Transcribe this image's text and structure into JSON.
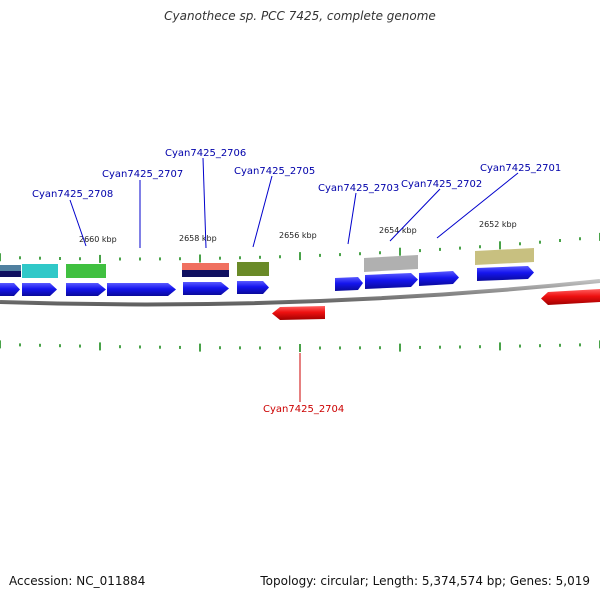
{
  "title": "Cyanothece sp. PCC 7425, complete genome",
  "footer": {
    "accession": "Accession: NC_011884",
    "summary": "Topology: circular; Length: 5,374,574 bp; Genes: 5,019"
  },
  "ruler": {
    "labels": [
      "2660 kbp",
      "2658 kbp",
      "2656 kbp",
      "2654 kbp",
      "2652 kbp"
    ]
  },
  "gene_labels": [
    {
      "text": "Cyan7425_2708",
      "color": "#0000aa"
    },
    {
      "text": "Cyan7425_2707",
      "color": "#0000aa"
    },
    {
      "text": "Cyan7425_2706",
      "color": "#0000aa"
    },
    {
      "text": "Cyan7425_2705",
      "color": "#0000aa"
    },
    {
      "text": "Cyan7425_2703",
      "color": "#0000aa"
    },
    {
      "text": "Cyan7425_2702",
      "color": "#0000aa"
    },
    {
      "text": "Cyan7425_2701",
      "color": "#0000aa"
    },
    {
      "text": "Cyan7425_2704",
      "color": "#cc0000"
    }
  ],
  "colors": {
    "forward_gene": "#1010e0",
    "reverse_gene": "#e80000",
    "backbone": "#808080",
    "tick": "#1a8a1a",
    "cog_cyan": "#30c8c8",
    "cog_green": "#40c040",
    "cog_salmon": "#f07060",
    "cog_navy": "#101060",
    "cog_olive": "#6a8a28",
    "cog_grey": "#b0b0b0",
    "cog_khaki": "#c8c080",
    "cog_steel": "#5080a0"
  }
}
